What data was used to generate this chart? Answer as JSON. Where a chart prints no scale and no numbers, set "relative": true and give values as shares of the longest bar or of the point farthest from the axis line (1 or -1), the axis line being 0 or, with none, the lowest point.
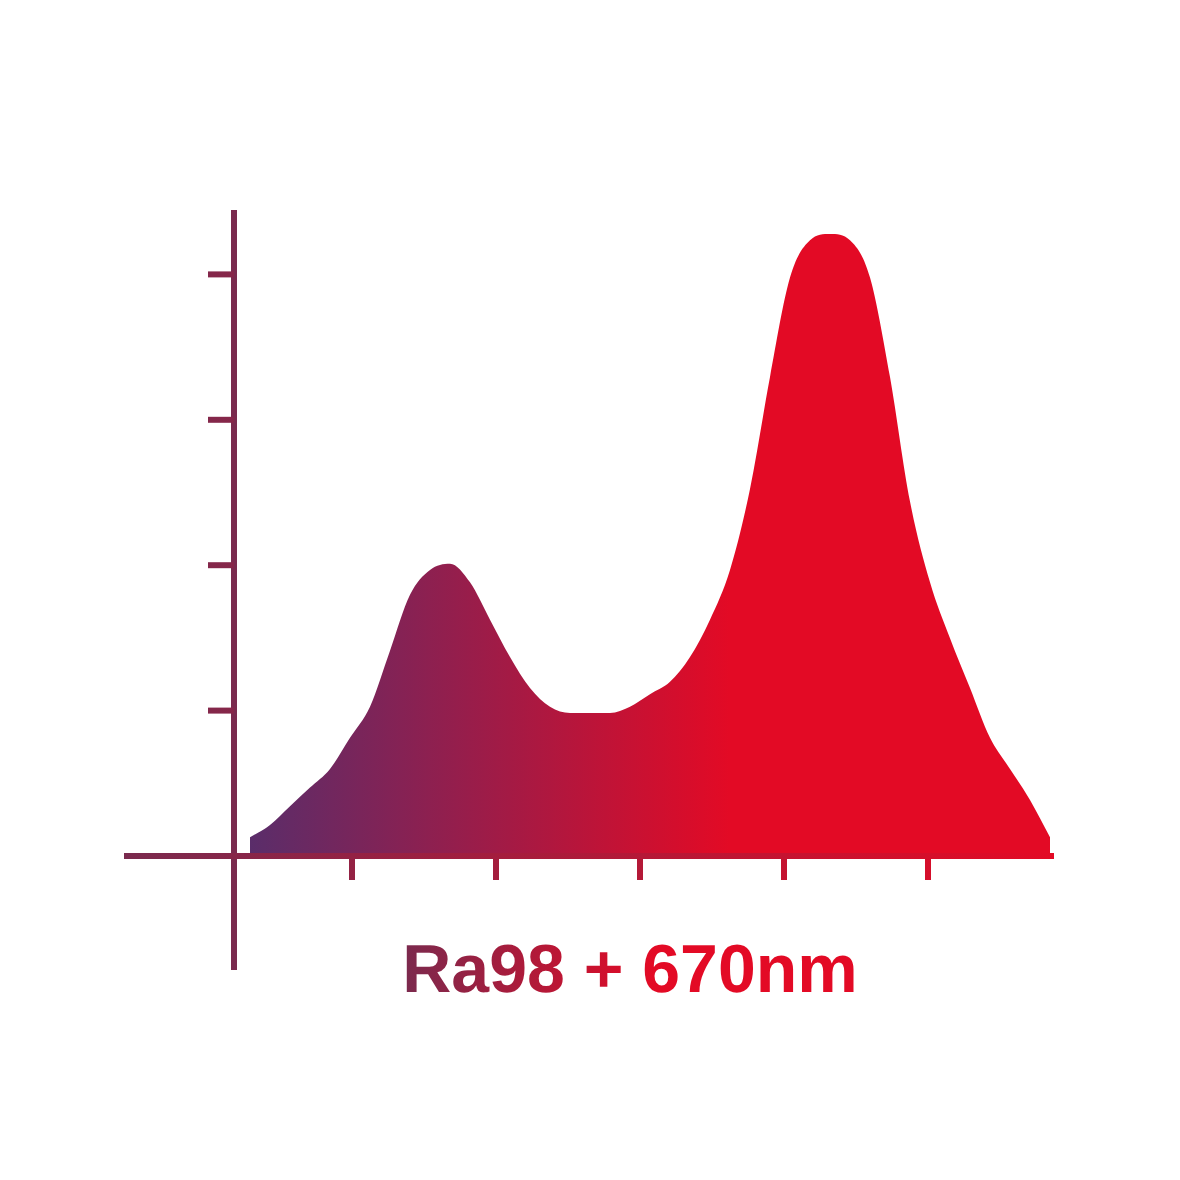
{
  "chart_data": {
    "type": "area",
    "title": "Ra98 + 670nm",
    "relative": true,
    "categories": [
      null,
      null,
      null,
      null,
      null,
      null,
      null,
      null,
      null,
      null,
      null,
      null,
      null,
      null,
      null,
      null,
      null,
      null,
      null,
      null,
      null,
      null,
      null,
      null,
      null,
      null,
      null,
      null,
      null,
      null,
      null,
      null,
      null,
      null,
      null,
      null,
      null,
      null,
      null,
      null,
      null
    ],
    "series": [
      {
        "color": "#e30a25",
        "values": [
          0.03,
          0.05,
          0.08,
          0.11,
          0.14,
          0.19,
          0.24,
          0.33,
          0.42,
          0.46,
          0.47,
          0.44,
          0.38,
          0.32,
          0.27,
          0.24,
          0.23,
          0.23,
          0.23,
          0.24,
          0.26,
          0.28,
          0.32,
          0.38,
          0.46,
          0.59,
          0.77,
          0.93,
          0.99,
          1.0,
          0.99,
          0.93,
          0.77,
          0.57,
          0.44,
          0.35,
          0.27,
          0.19,
          0.14,
          0.09,
          0.03
        ]
      }
    ],
    "legend": false
  }
}
